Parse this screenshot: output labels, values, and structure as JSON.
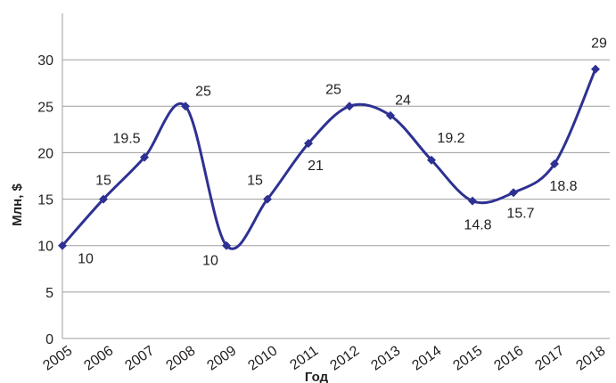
{
  "chart_data": {
    "type": "line",
    "title": "",
    "xlabel": "Год",
    "ylabel": "Млн, $",
    "x": [
      "2005",
      "2006",
      "2007",
      "2008",
      "2009",
      "2010",
      "2011",
      "2012",
      "2013",
      "2014",
      "2015",
      "2016",
      "2017",
      "2018"
    ],
    "series": [
      {
        "values": [
          10,
          15,
          19.5,
          25,
          10,
          15,
          21,
          25,
          24,
          19.2,
          14.8,
          15.7,
          18.8,
          29
        ],
        "labels": [
          "10",
          "15",
          "19.5",
          "25",
          "10",
          "15",
          "21",
          "25",
          "24",
          "19.2",
          "14.8",
          "15.7",
          "18.8",
          "29"
        ]
      }
    ],
    "ylim": [
      0,
      35
    ],
    "yticks": [
      0,
      5,
      10,
      15,
      20,
      25,
      30
    ],
    "ytick_labels": [
      "0",
      "5",
      "10",
      "15",
      "20",
      "25",
      "30"
    ],
    "grid": true,
    "smooth": true,
    "legend": "none",
    "colors": {
      "series": "#2e3192",
      "grid": "#9d9d9d",
      "text": "#231f20"
    }
  }
}
